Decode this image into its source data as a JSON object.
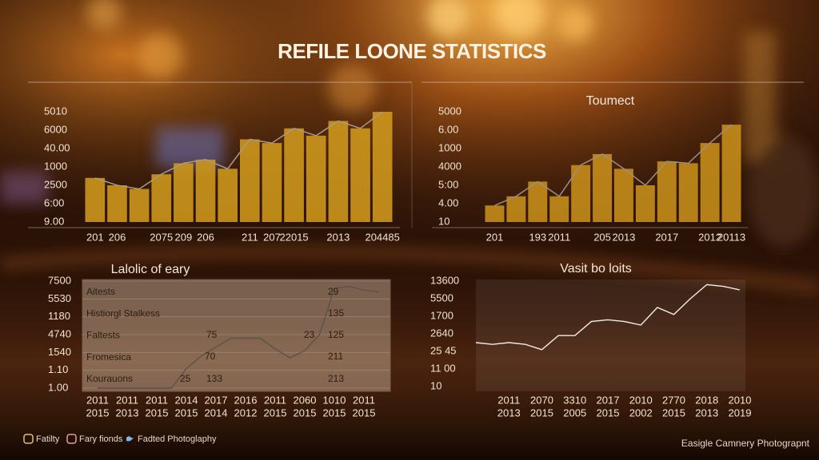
{
  "title": "REFILE LOONE STATISTICS",
  "chart_data": [
    {
      "type": "bar",
      "ylim": [
        0,
        6
      ],
      "yticks": [
        {
          "value": 0,
          "label": "9.00"
        },
        {
          "value": 1,
          "label": "6:00"
        },
        {
          "value": 2,
          "label": "2500"
        },
        {
          "value": 3,
          "label": "1000"
        },
        {
          "value": 4,
          "label": "40.00"
        },
        {
          "value": 5,
          "label": "6000"
        },
        {
          "value": 6,
          "label": "5010"
        }
      ],
      "categories": [
        "201",
        "206",
        null,
        "2075",
        "209",
        "206",
        null,
        "211",
        "207",
        "22015",
        null,
        "2013",
        null,
        "204485"
      ],
      "values": [
        2.4,
        2.0,
        1.8,
        2.6,
        3.2,
        3.4,
        2.9,
        4.5,
        4.3,
        5.1,
        4.7,
        5.5,
        5.1,
        6.0
      ],
      "color": "#d09a1c",
      "line_color": "#a89a8a",
      "grid": false
    },
    {
      "type": "bar",
      "title": "Toumect",
      "ylim": [
        0,
        6
      ],
      "yticks": [
        {
          "value": 0,
          "label": "10"
        },
        {
          "value": 1,
          "label": "4.00"
        },
        {
          "value": 2,
          "label": "5:00"
        },
        {
          "value": 3,
          "label": "4000"
        },
        {
          "value": 4,
          "label": "1000"
        },
        {
          "value": 5,
          "label": "6.00"
        },
        {
          "value": 6,
          "label": "5000"
        }
      ],
      "categories": [
        "201",
        null,
        "193",
        "2011",
        null,
        "205",
        "2013",
        null,
        "2017",
        null,
        "2012",
        "20113"
      ],
      "values": [
        0.9,
        1.4,
        2.2,
        1.4,
        3.1,
        3.7,
        2.9,
        2.0,
        3.3,
        3.2,
        4.3,
        5.3
      ],
      "color": "#c8901a",
      "line_color": "#9c8f83",
      "grid": false
    },
    {
      "type": "line",
      "title": "Lalolic of eary",
      "ylim": [
        0,
        6
      ],
      "yticks": [
        {
          "value": 0,
          "label": "1.00"
        },
        {
          "value": 1,
          "label": "1.10"
        },
        {
          "value": 2,
          "label": "1540"
        },
        {
          "value": 3,
          "label": "4740"
        },
        {
          "value": 4,
          "label": "1180"
        },
        {
          "value": 5,
          "label": "5530"
        },
        {
          "value": 6,
          "label": "7500"
        }
      ],
      "categories": [
        [
          "2011",
          "2015"
        ],
        null,
        [
          "2011",
          "2013"
        ],
        null,
        [
          "2011",
          "2015"
        ],
        null,
        [
          "2014",
          "2015"
        ],
        null,
        [
          "2017",
          "2014"
        ],
        null,
        [
          "2016",
          "2012"
        ],
        null,
        [
          "2011",
          "2015"
        ],
        null,
        [
          "2060",
          "2015"
        ],
        null,
        [
          "1010",
          "2015"
        ],
        null,
        [
          "2011",
          "2015"
        ],
        null
      ],
      "values": [
        0,
        0,
        0,
        0,
        0,
        0,
        1.1,
        1.8,
        2.3,
        2.8,
        2.8,
        2.8,
        2.2,
        1.7,
        2.1,
        3.0,
        5.6,
        5.7,
        5.5,
        5.4
      ],
      "color": "#5d5248",
      "rows": [
        "Aitests",
        "Histiorgl Stalkess",
        "Faltests",
        "Fromesica",
        "Kourauons"
      ],
      "cell_labels": [
        "29",
        "135",
        "75",
        "23",
        "125",
        "70",
        "211",
        "25",
        "133",
        "213"
      ],
      "grid": true
    },
    {
      "type": "line",
      "title": "Vasit bo loits",
      "ylim": [
        0,
        6
      ],
      "yticks": [
        {
          "value": 0,
          "label": "10"
        },
        {
          "value": 1,
          "label": "11 00"
        },
        {
          "value": 2,
          "label": "25 45"
        },
        {
          "value": 3,
          "label": "2640"
        },
        {
          "value": 4,
          "label": "1700"
        },
        {
          "value": 5,
          "label": "5500"
        },
        {
          "value": 6,
          "label": "13600"
        }
      ],
      "categories": [
        null,
        null,
        [
          "2011",
          "2013"
        ],
        null,
        [
          "2070",
          "2015"
        ],
        null,
        [
          "3310",
          "2005"
        ],
        null,
        [
          "2017",
          "2015"
        ],
        null,
        [
          "2010",
          "2002"
        ],
        null,
        [
          "2770",
          "2015"
        ],
        null,
        [
          "2018",
          "2013"
        ],
        null,
        [
          "2010",
          "2019"
        ]
      ],
      "values": [
        2.5,
        2.4,
        2.5,
        2.4,
        2.1,
        2.9,
        2.9,
        3.7,
        3.8,
        3.7,
        3.5,
        4.5,
        4.1,
        5.0,
        5.8,
        5.7,
        5.5
      ],
      "color": "#f2ece6",
      "grid": false
    }
  ],
  "footer": {
    "links": [
      "Fatilty",
      "Fary fionds",
      "Fadted Photoglaphy"
    ],
    "credit": "Easigle Camnery Photograpnt"
  }
}
